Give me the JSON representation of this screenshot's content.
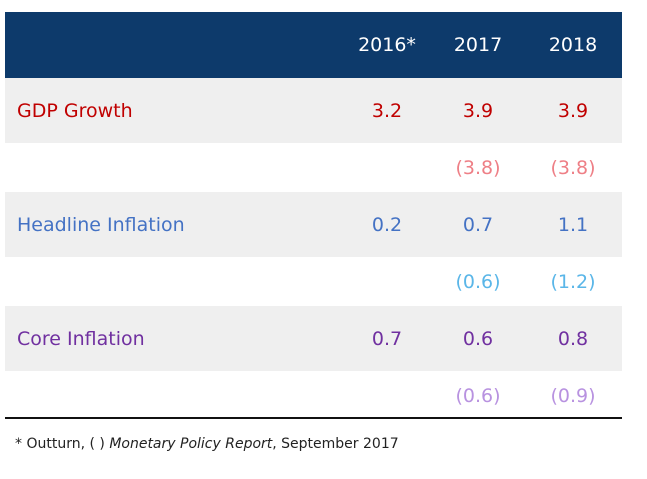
{
  "table": {
    "header": [
      "2016*",
      "2017",
      "2018"
    ],
    "rows": [
      {
        "label": "GDP Growth",
        "values": [
          "3.2",
          "3.9",
          "3.9"
        ]
      },
      {
        "values": [
          "(3.8)",
          "(3.8)"
        ]
      },
      {
        "label": "Headline Inflation",
        "values": [
          "0.2",
          "0.7",
          "1.1"
        ]
      },
      {
        "values": [
          "(0.6)",
          "(1.2)"
        ]
      },
      {
        "label": "Core Inflation",
        "values": [
          "0.7",
          "0.6",
          "0.8"
        ]
      },
      {
        "values": [
          "(0.6)",
          "(0.9)"
        ]
      }
    ]
  },
  "footnote": {
    "prefix": "* Outturn, ( ) ",
    "title": "Monetary Policy Report",
    "suffix": ", September 2017"
  }
}
